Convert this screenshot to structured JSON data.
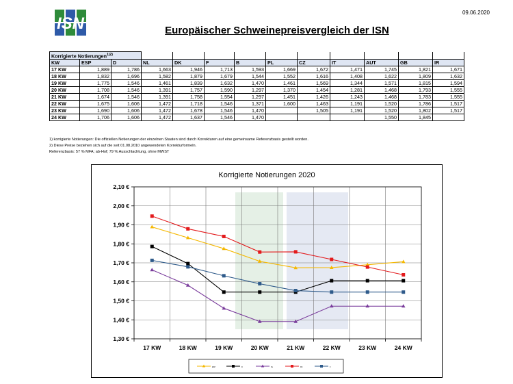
{
  "header": {
    "date": "09.06.2020",
    "title": "Europäischer Schweinepreisvergleich der ISN",
    "logo_text": "ISN"
  },
  "table": {
    "caption": "Korrigierte Notierungen",
    "caption_sup": "1)2)",
    "columns": [
      "KW",
      "ESP",
      "D",
      "NL",
      "DK",
      "F",
      "B",
      "PL",
      "CZ",
      "IT",
      "AUT",
      "GB",
      "IR"
    ],
    "rows": [
      [
        "17 KW",
        "1,889",
        "1,786",
        "1,663",
        "1,946",
        "1,713",
        "1,593",
        "1,669",
        "1,672",
        "1,471",
        "1,745",
        "1,821",
        "1,671"
      ],
      [
        "18 KW",
        "1,832",
        "1,696",
        "1,582",
        "1,879",
        "1,679",
        "1,544",
        "1,552",
        "1,616",
        "1,408",
        "1,622",
        "1,809",
        "1,632"
      ],
      [
        "19 KW",
        "1,775",
        "1,546",
        "1,461",
        "1,839",
        "1,632",
        "1,470",
        "1,461",
        "1,569",
        "1,344",
        "1,571",
        "1,815",
        "1,594"
      ],
      [
        "20 KW",
        "1,708",
        "1,546",
        "1,391",
        "1,757",
        "1,590",
        "1,297",
        "1,370",
        "1,454",
        "1,281",
        "1,468",
        "1,793",
        "1,555"
      ],
      [
        "21 KW",
        "1,674",
        "1,546",
        "1,391",
        "1,758",
        "1,554",
        "1,297",
        "1,451",
        "1,426",
        "1,243",
        "1,468",
        "1,783",
        "1,555"
      ],
      [
        "22 KW",
        "1,675",
        "1,606",
        "1,472",
        "1,718",
        "1,546",
        "1,371",
        "1,600",
        "1,463",
        "1,191",
        "1,520",
        "1,786",
        "1,517"
      ],
      [
        "23 KW",
        "1,690",
        "1,606",
        "1,472",
        "1,678",
        "1,546",
        "1,470",
        "",
        "1,505",
        "1,191",
        "1,520",
        "1,802",
        "1,517"
      ],
      [
        "24 KW",
        "1,706",
        "1,606",
        "1,472",
        "1,637",
        "1,546",
        "1,470",
        "",
        "",
        "",
        "1,550",
        "1,845",
        ""
      ]
    ]
  },
  "footnotes": [
    "1) korrigierte Notierungen: Die offiziellen Notierungen der einzelnen Staaten sind durch Korrekturen auf eine gemeinsame Referenzbasis gestellt worden.",
    "2) Diese Preise beziehen sich auf die seit 01.08.2010 angewendeten Korrekturformeln.",
    "Referenzbasis: 57 % MFA; ab-Hof; 79 % Ausschlachtung, ohne MWST"
  ],
  "chart_data": {
    "type": "line",
    "title": "Korrigierte Notierungen 2020",
    "categories": [
      "17 KW",
      "18 KW",
      "19 KW",
      "20 KW",
      "21 KW",
      "22 KW",
      "23 KW",
      "24 KW"
    ],
    "y_tick_labels": [
      "1,30 €",
      "1,40 €",
      "1,50 €",
      "1,60 €",
      "1,70 €",
      "1,80 €",
      "1,90 €",
      "2,00 €",
      "2,10 €"
    ],
    "ylim": [
      1.3,
      2.1
    ],
    "y_step": 0.1,
    "grid": true,
    "legend_placement": "bottom",
    "series": [
      {
        "values": [
          1.889,
          1.832,
          1.775,
          1.708,
          1.674,
          1.675,
          1.69,
          1.706
        ],
        "color": "#f5b800",
        "marker": "triangle"
      },
      {
        "values": [
          1.786,
          1.696,
          1.546,
          1.546,
          1.546,
          1.606,
          1.606,
          1.606
        ],
        "color": "#000000",
        "marker": "square"
      },
      {
        "values": [
          1.663,
          1.582,
          1.461,
          1.391,
          1.391,
          1.472,
          1.472,
          1.472
        ],
        "color": "#7a3c9c",
        "marker": "triangle"
      },
      {
        "values": [
          1.946,
          1.879,
          1.839,
          1.757,
          1.758,
          1.718,
          1.678,
          1.637
        ],
        "color": "#e31a1c",
        "marker": "square"
      },
      {
        "values": [
          1.713,
          1.679,
          1.632,
          1.59,
          1.554,
          1.546,
          1.546,
          1.546
        ],
        "color": "#2e5a8a",
        "marker": "square"
      }
    ],
    "legend_labels": [
      "ESP",
      "D",
      "NL",
      "DK",
      "F"
    ]
  }
}
